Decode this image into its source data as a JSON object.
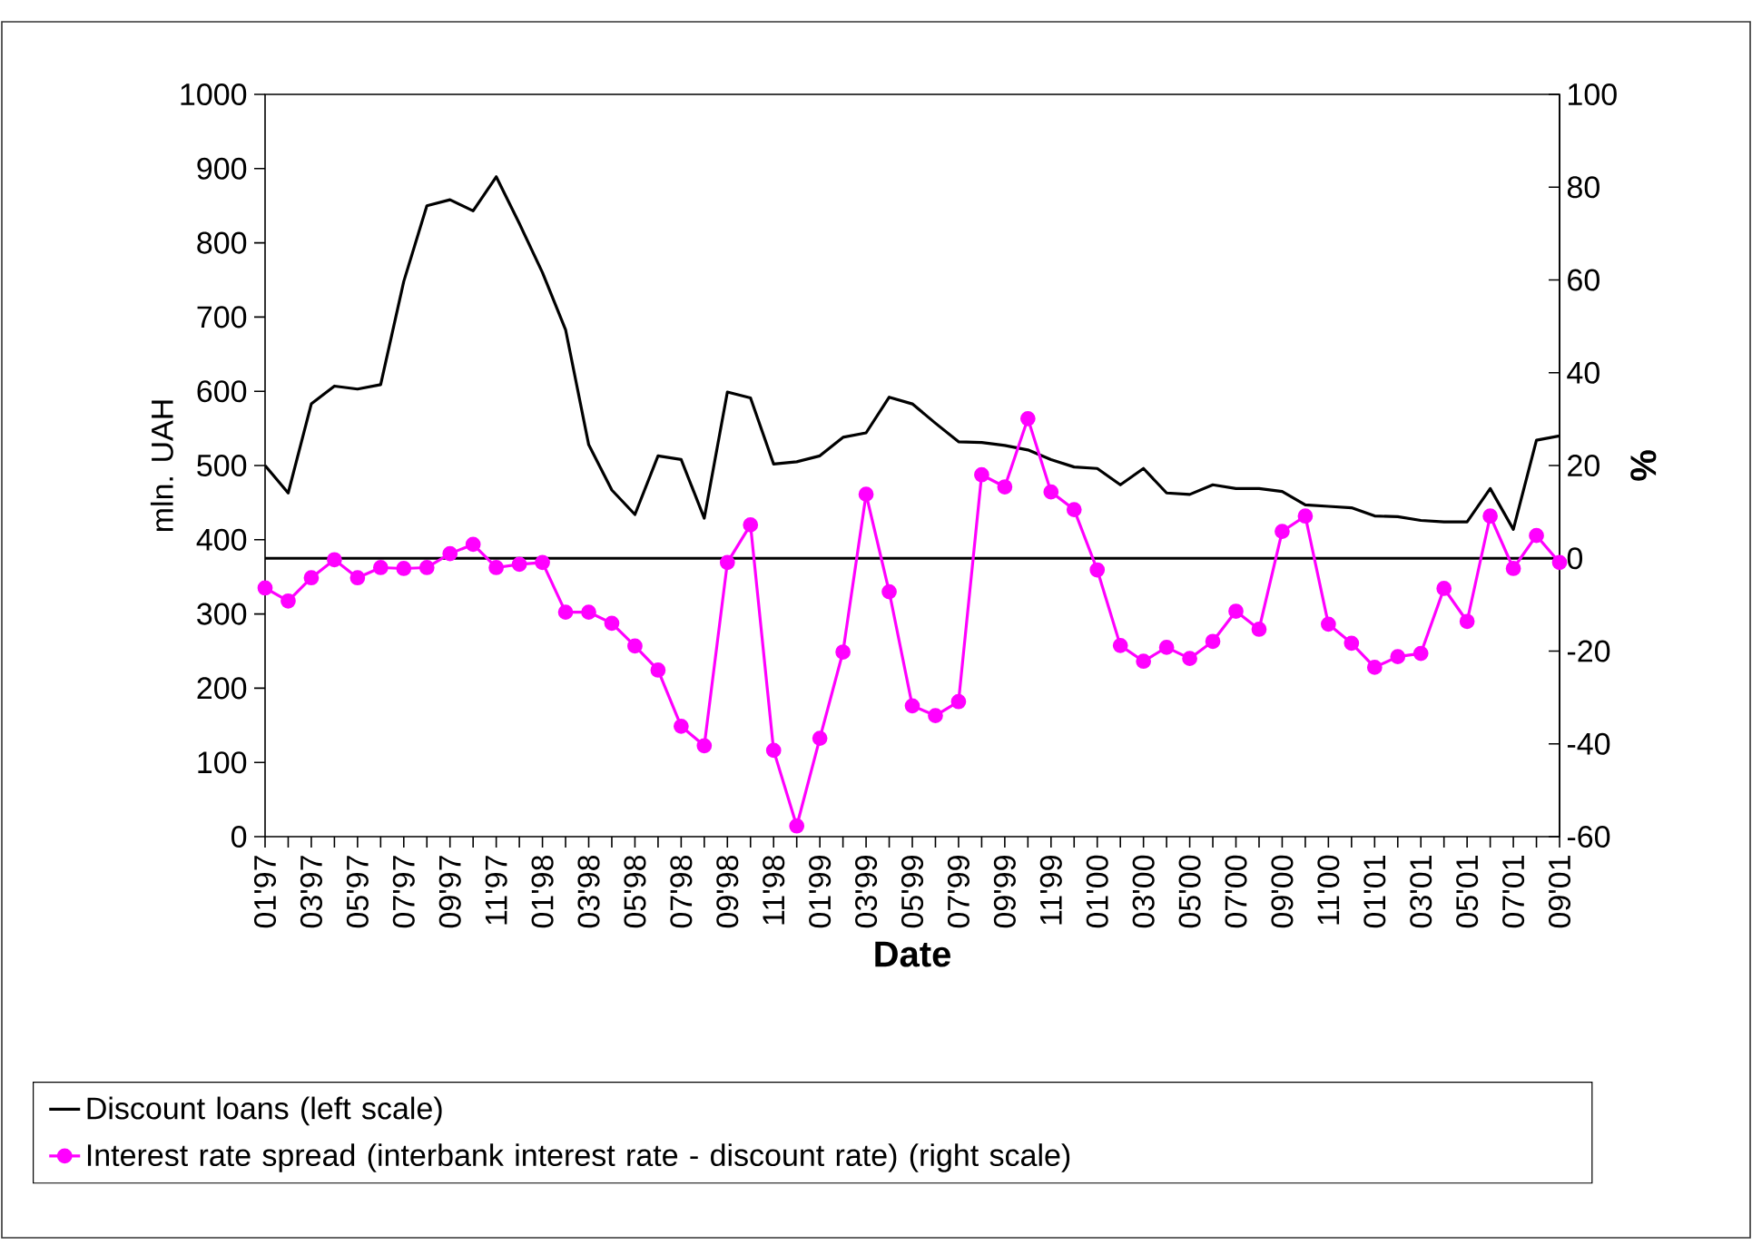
{
  "chart_data": {
    "type": "line",
    "xlabel": "Date",
    "ylabel": "mln. UAH",
    "y2label": "%",
    "categories": [
      "01'97",
      null,
      "03'97",
      null,
      "05'97",
      null,
      "07'97",
      null,
      "09'97",
      null,
      "11'97",
      null,
      "01'98",
      null,
      "03'98",
      null,
      "05'98",
      null,
      "07'98",
      null,
      "09'98",
      null,
      "11'98",
      null,
      "01'99",
      null,
      "03'99",
      null,
      "05'99",
      null,
      "07'99",
      null,
      "09'99",
      null,
      "11'99",
      null,
      "01'00",
      null,
      "03'00",
      null,
      "05'00",
      null,
      "07'00",
      null,
      "09'00",
      null,
      "11'00",
      null,
      "01'01",
      null,
      "03'01",
      null,
      "05'01",
      null,
      "07'01",
      null,
      "09'01"
    ],
    "series": [
      {
        "name": "Discount loans (left scale)",
        "color": "#000000",
        "marker": "none",
        "values": [
          500,
          463,
          583,
          607,
          603,
          609,
          748,
          850,
          858,
          843,
          889,
          826,
          760,
          683,
          528,
          467,
          434,
          513,
          508,
          429,
          599,
          591,
          502,
          505,
          513,
          538,
          544,
          592,
          583,
          557,
          532,
          531,
          527,
          521,
          508,
          498,
          496,
          474,
          496,
          463,
          461,
          474,
          469,
          469,
          465,
          447,
          445,
          443,
          432,
          431,
          426,
          424,
          424,
          469,
          414,
          534,
          540
        ]
      },
      {
        "name": "Interest rate spread (interbank interest rate - discount rate) (right scale)",
        "color": "#ff00ff",
        "marker": "circle",
        "axis": "y2",
        "values": [
          -6.4,
          -9.2,
          -4.2,
          -0.3,
          -4.2,
          -2.0,
          -2.2,
          -2.0,
          1.0,
          3.0,
          -2.0,
          -1.3,
          -0.9,
          -11.6,
          -11.6,
          -14.0,
          -18.9,
          -24.1,
          -36.2,
          -40.4,
          -0.9,
          7.2,
          -41.4,
          -57.7,
          -38.8,
          -20.2,
          13.8,
          -7.2,
          -31.8,
          -33.9,
          -30.9,
          18.0,
          15.4,
          30.1,
          14.3,
          10.5,
          -2.5,
          -18.8,
          -22.2,
          -19.2,
          -21.6,
          -17.9,
          -11.4,
          -15.3,
          5.8,
          9.1,
          -14.2,
          -18.3,
          -23.5,
          -21.2,
          -20.5,
          -6.5,
          -13.6,
          9.1,
          -2.2,
          4.9,
          -0.9
        ]
      }
    ],
    "ylim": [
      0,
      1000
    ],
    "yticks": [
      0,
      100,
      200,
      300,
      400,
      500,
      600,
      700,
      800,
      900,
      1000
    ],
    "y2lim": [
      -60,
      100
    ],
    "y2ticks": [
      -60,
      -40,
      -20,
      0,
      20,
      40,
      60,
      80,
      100
    ],
    "ref_lines": [
      {
        "axis": "y2",
        "value": 0,
        "color": "#000000"
      }
    ],
    "legend": "bottom"
  }
}
